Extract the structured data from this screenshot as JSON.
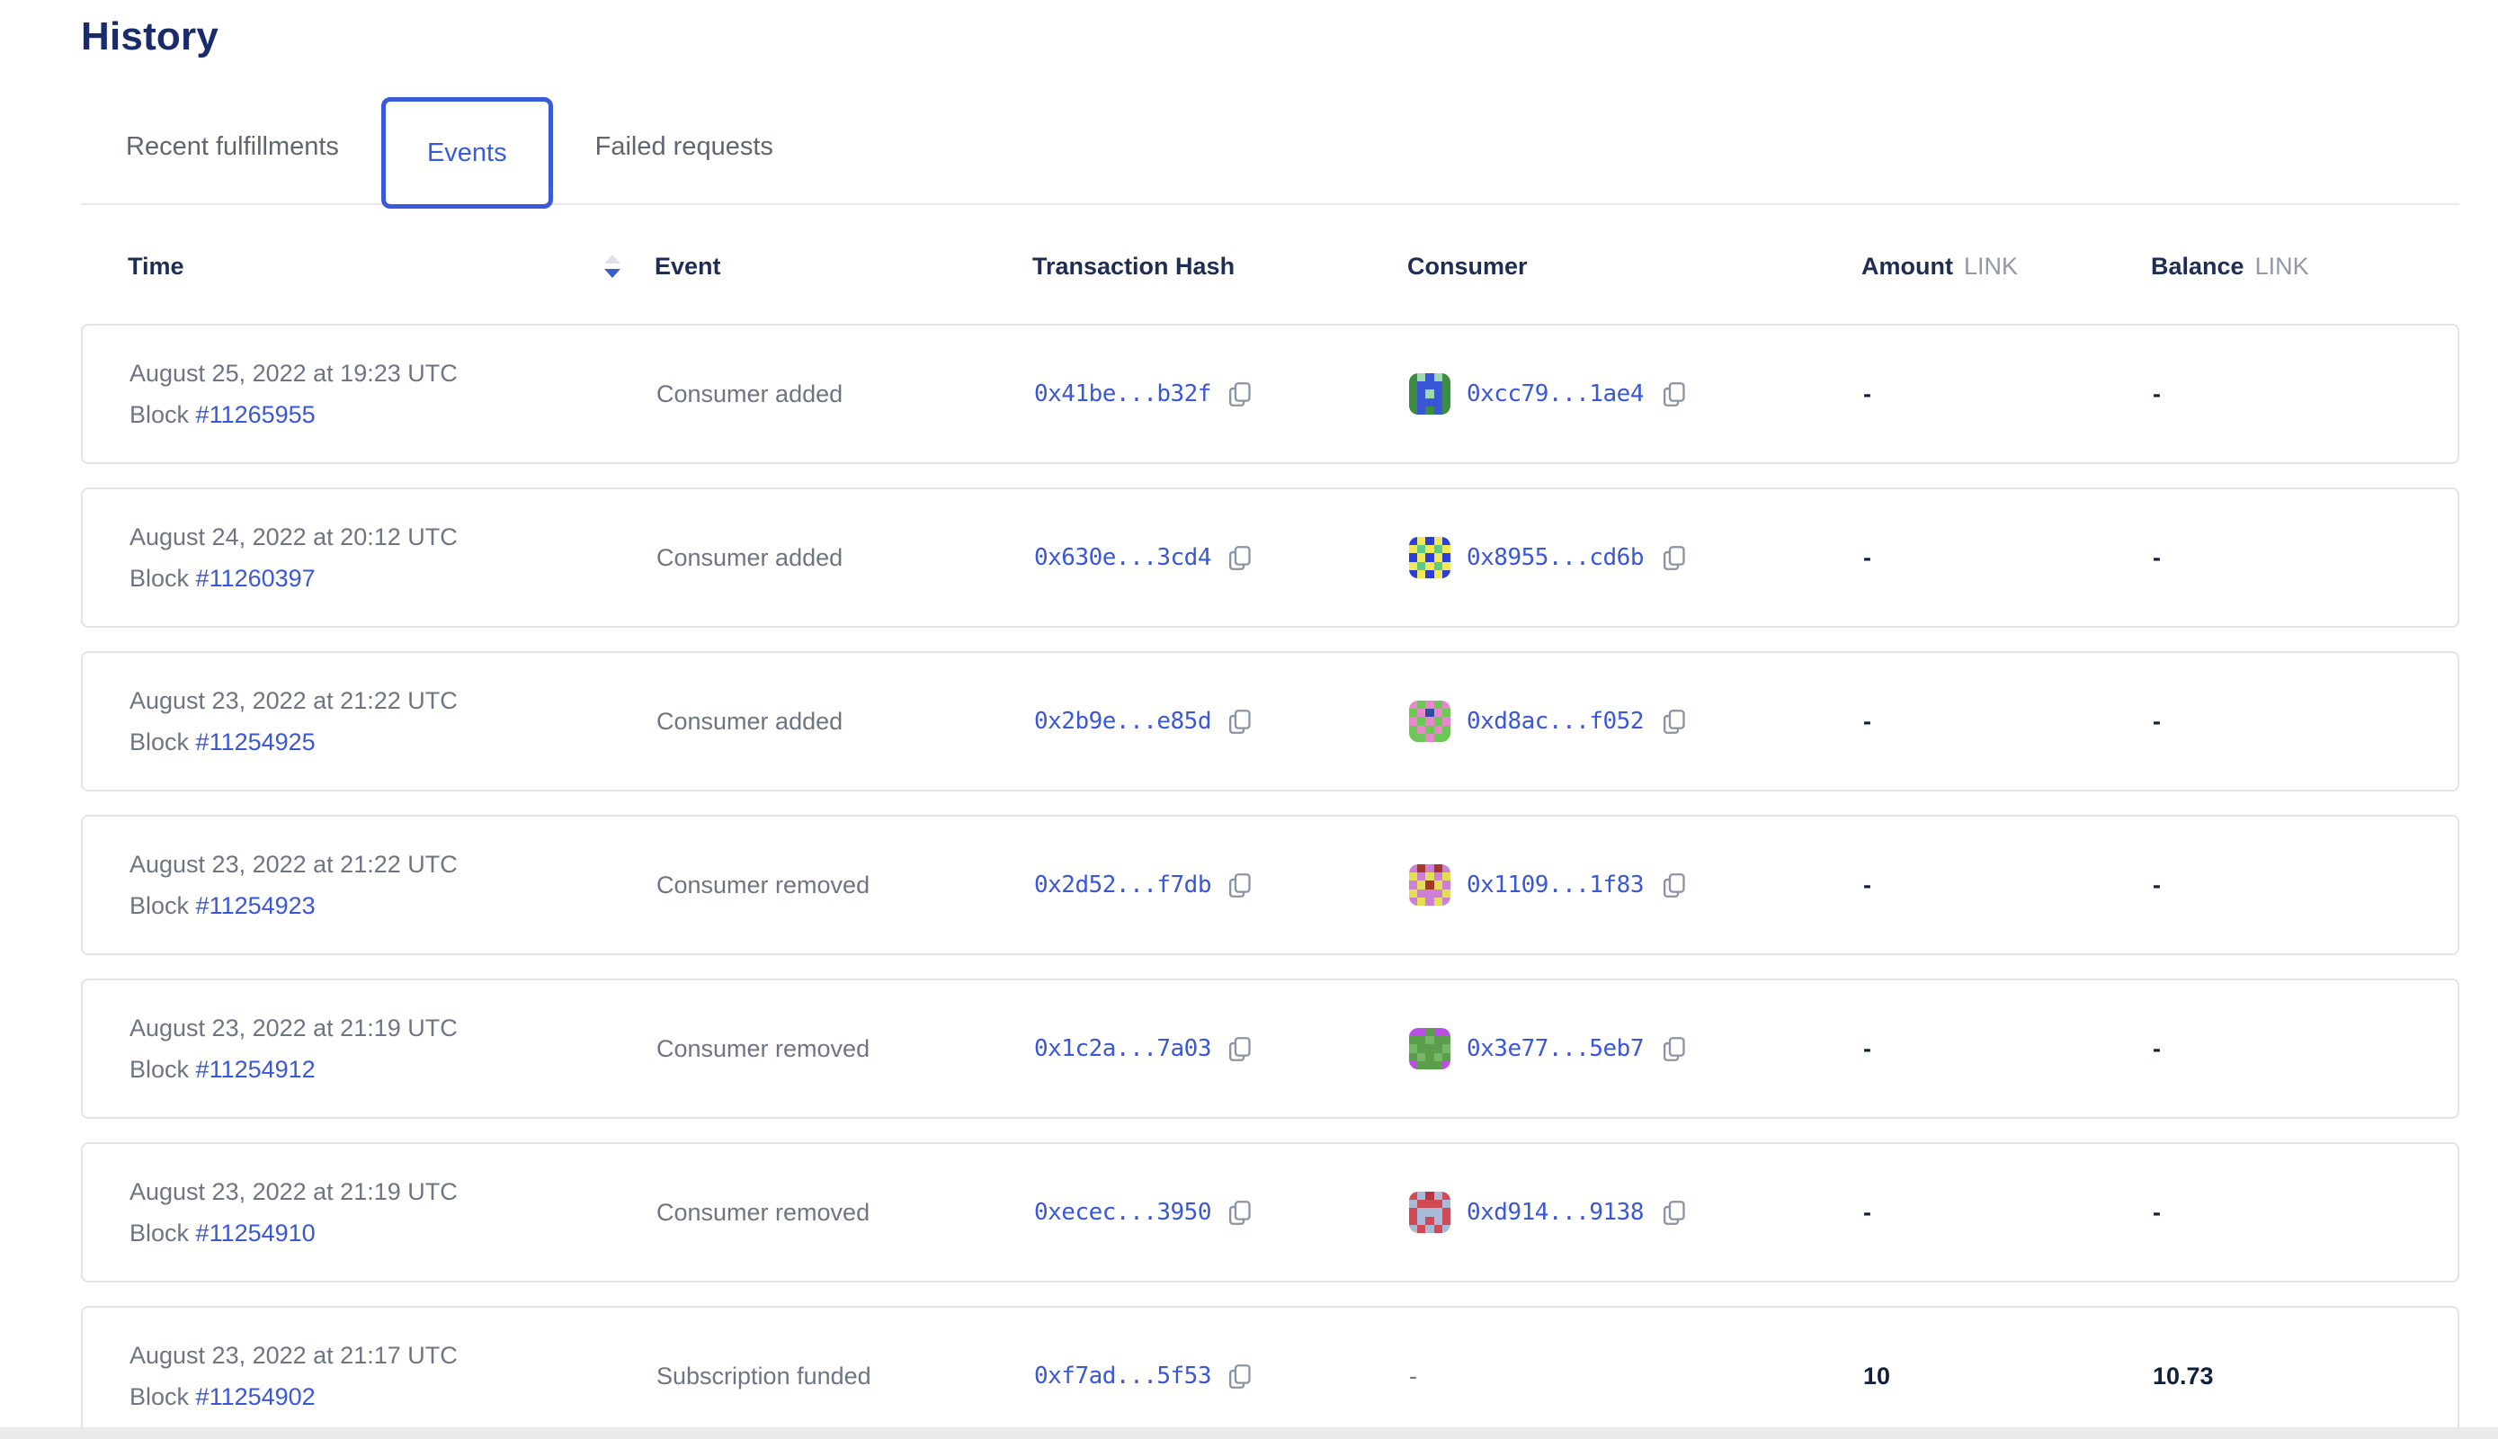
{
  "page": {
    "title": "History"
  },
  "tabs": [
    {
      "label": "Recent fulfillments",
      "active": false
    },
    {
      "label": "Events",
      "active": true
    },
    {
      "label": "Failed requests",
      "active": false
    }
  ],
  "table": {
    "columns": {
      "time": "Time",
      "event": "Event",
      "tx": "Transaction Hash",
      "consumer": "Consumer",
      "amount": "Amount",
      "balance": "Balance",
      "unit": "LINK"
    },
    "rows": [
      {
        "date": "August 25, 2022 at 19:23 UTC",
        "block_label": "Block",
        "block": "#11265955",
        "event": "Consumer added",
        "tx": "0x41be...b32f",
        "consumer": "0xcc79...1ae4",
        "avatar": {
          "palette": [
            "#3e8b44",
            "#3a55d8",
            "#9fd9b0"
          ],
          "grid": [
            [
              0,
              2,
              1,
              2,
              0
            ],
            [
              0,
              1,
              1,
              1,
              0
            ],
            [
              0,
              1,
              2,
              1,
              0
            ],
            [
              0,
              1,
              1,
              1,
              0
            ],
            [
              0,
              1,
              0,
              1,
              0
            ]
          ]
        },
        "amount": "-",
        "balance": "-"
      },
      {
        "date": "August 24, 2022 at 20:12 UTC",
        "block_label": "Block",
        "block": "#11260397",
        "event": "Consumer added",
        "tx": "0x630e...3cd4",
        "consumer": "0x8955...cd6b",
        "avatar": {
          "palette": [
            "#2b3fd8",
            "#efe958",
            "#5fc98a"
          ],
          "grid": [
            [
              0,
              1,
              0,
              1,
              0
            ],
            [
              1,
              2,
              1,
              2,
              1
            ],
            [
              0,
              1,
              0,
              1,
              0
            ],
            [
              1,
              2,
              1,
              2,
              1
            ],
            [
              0,
              1,
              0,
              1,
              0
            ]
          ]
        },
        "amount": "-",
        "balance": "-"
      },
      {
        "date": "August 23, 2022 at 21:22 UTC",
        "block_label": "Block",
        "block": "#11254925",
        "event": "Consumer added",
        "tx": "0x2b9e...e85d",
        "consumer": "0xd8ac...f052",
        "avatar": {
          "palette": [
            "#6cc755",
            "#e888cc",
            "#2d4f9e"
          ],
          "grid": [
            [
              1,
              0,
              1,
              0,
              1
            ],
            [
              0,
              1,
              2,
              1,
              0
            ],
            [
              1,
              0,
              1,
              0,
              1
            ],
            [
              0,
              1,
              0,
              1,
              0
            ],
            [
              0,
              0,
              1,
              0,
              0
            ]
          ]
        },
        "amount": "-",
        "balance": "-"
      },
      {
        "date": "August 23, 2022 at 21:22 UTC",
        "block_label": "Block",
        "block": "#11254923",
        "event": "Consumer removed",
        "tx": "0x2d52...f7db",
        "consumer": "0x1109...1f83",
        "avatar": {
          "palette": [
            "#cd7fd4",
            "#e3df55",
            "#a3392b"
          ],
          "grid": [
            [
              0,
              2,
              0,
              2,
              0
            ],
            [
              1,
              0,
              1,
              0,
              1
            ],
            [
              0,
              1,
              2,
              1,
              0
            ],
            [
              1,
              0,
              0,
              0,
              1
            ],
            [
              0,
              1,
              0,
              1,
              0
            ]
          ]
        },
        "amount": "-",
        "balance": "-"
      },
      {
        "date": "August 23, 2022 at 21:19 UTC",
        "block_label": "Block",
        "block": "#11254912",
        "event": "Consumer removed",
        "tx": "0x1c2a...7a03",
        "consumer": "0x3e77...5eb7",
        "avatar": {
          "palette": [
            "#5a9e4c",
            "#bb4fe3",
            "#74b867"
          ],
          "grid": [
            [
              1,
              1,
              0,
              1,
              1
            ],
            [
              0,
              0,
              2,
              0,
              0
            ],
            [
              2,
              0,
              0,
              0,
              2
            ],
            [
              0,
              2,
              0,
              2,
              0
            ],
            [
              1,
              0,
              0,
              0,
              1
            ]
          ]
        },
        "amount": "-",
        "balance": "-"
      },
      {
        "date": "August 23, 2022 at 21:19 UTC",
        "block_label": "Block",
        "block": "#11254910",
        "event": "Consumer removed",
        "tx": "0xecec...3950",
        "consumer": "0xd914...9138",
        "avatar": {
          "palette": [
            "#cf4a55",
            "#a9bad8",
            "#b73440"
          ],
          "grid": [
            [
              0,
              1,
              2,
              1,
              0
            ],
            [
              1,
              0,
              0,
              0,
              1
            ],
            [
              0,
              1,
              1,
              1,
              0
            ],
            [
              0,
              1,
              0,
              1,
              0
            ],
            [
              1,
              0,
              1,
              0,
              1
            ]
          ]
        },
        "amount": "-",
        "balance": "-"
      },
      {
        "date": "August 23, 2022 at 21:17 UTC",
        "block_label": "Block",
        "block": "#11254902",
        "event": "Subscription funded",
        "tx": "0xf7ad...5f53",
        "consumer": null,
        "avatar": null,
        "amount": "10",
        "balance": "10.73"
      }
    ]
  },
  "icons": {
    "sort": "sort-asc-desc-icon",
    "copy": "copy-icon"
  },
  "colors": {
    "brand_blue": "#3a5bd7",
    "link_blue": "#3a57d6",
    "heading_navy": "#1a2b6b",
    "header_text": "#1f2d54",
    "body_gray": "#6d7583",
    "unit_gray": "#9298a6",
    "value_dark": "#13203c",
    "card_border": "#e4e4e8",
    "sort_inactive": "#dde1ea",
    "sort_active": "#3c5ccf",
    "copy_icon_gray": "#8b93a3"
  }
}
